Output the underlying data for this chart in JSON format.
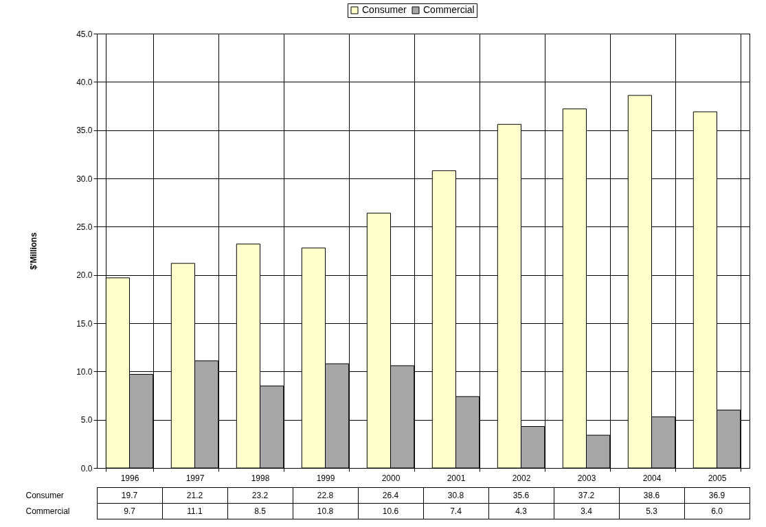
{
  "chart_data": {
    "type": "bar",
    "ylabel": "$'Millions",
    "categories": [
      "1996",
      "1997",
      "1998",
      "1999",
      "2000",
      "2001",
      "2002",
      "2003",
      "2004",
      "2005"
    ],
    "series": [
      {
        "name": "Consumer",
        "color": "#ffffcc",
        "values": [
          19.7,
          21.2,
          23.2,
          22.8,
          26.4,
          30.8,
          35.6,
          37.2,
          38.6,
          36.9
        ],
        "value_labels": [
          "19.7",
          "21.2",
          "23.2",
          "22.8",
          "26.4",
          "30.8",
          "35.6",
          "37.2",
          "38.6",
          "36.9"
        ]
      },
      {
        "name": "Commercial",
        "color": "#a6a6a6",
        "values": [
          9.7,
          11.1,
          8.5,
          10.8,
          10.6,
          7.4,
          4.3,
          3.4,
          5.3,
          6.0
        ],
        "value_labels": [
          "9.7",
          "11.1",
          "8.5",
          "10.8",
          "10.6",
          "7.4",
          "4.3",
          "3.4",
          "5.3",
          "6.0"
        ]
      }
    ],
    "ylim": [
      0,
      45
    ],
    "yticks": [
      {
        "value": 0,
        "label": "0.0"
      },
      {
        "value": 5,
        "label": "5.0"
      },
      {
        "value": 10,
        "label": "10.0"
      },
      {
        "value": 15,
        "label": "15.0"
      },
      {
        "value": 20,
        "label": "20.0"
      },
      {
        "value": 25,
        "label": "25.0"
      },
      {
        "value": 30,
        "label": "30.0"
      },
      {
        "value": 35,
        "label": "35.0"
      },
      {
        "value": 40,
        "label": "40.0"
      },
      {
        "value": 45,
        "label": "45.0"
      }
    ],
    "grid": "y",
    "legend": "top"
  }
}
